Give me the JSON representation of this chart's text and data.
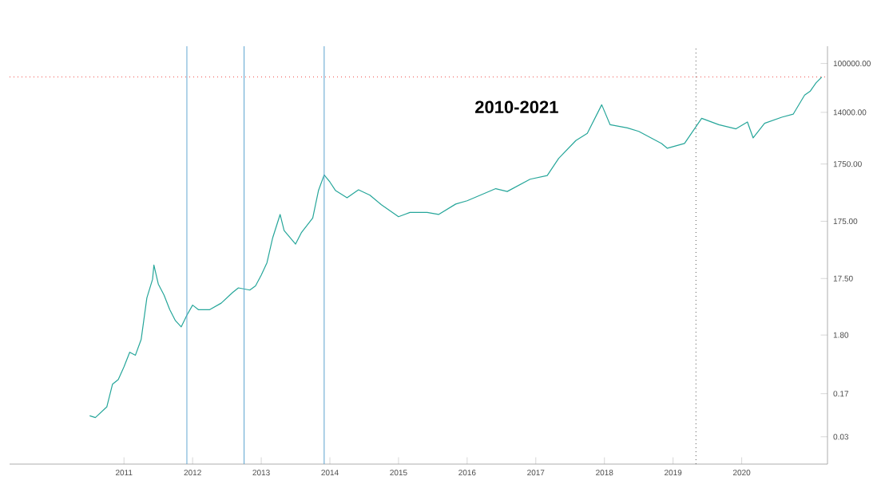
{
  "chart_data": {
    "type": "line",
    "title": "2010-2021",
    "log": "y",
    "grid": false,
    "marker": "none",
    "line_style": "solid",
    "xlim": [
      "2009-05",
      "2021-04"
    ],
    "xticks": [
      {
        "value": "2011-01-01",
        "label": "2011"
      },
      {
        "value": "2012-01-01",
        "label": "2012"
      },
      {
        "value": "2013-01-01",
        "label": "2013"
      },
      {
        "value": "2014-01-01",
        "label": "2014"
      },
      {
        "value": "2015-01-01",
        "label": "2015"
      },
      {
        "value": "2016-01-01",
        "label": "2016"
      },
      {
        "value": "2017-01-01",
        "label": "2017"
      },
      {
        "value": "2018-01-01",
        "label": "2018"
      },
      {
        "value": "2019-01-01",
        "label": "2019"
      },
      {
        "value": "2020-01-01",
        "label": "2020"
      }
    ],
    "ylim": [
      0.01,
      200000
    ],
    "yticks": [
      {
        "value": 100000,
        "label": "100000.00"
      },
      {
        "value": 14000,
        "label": "14000.00"
      },
      {
        "value": 1750,
        "label": "1750.00"
      },
      {
        "value": 175,
        "label": "175.00"
      },
      {
        "value": 17.5,
        "label": "17.50"
      },
      {
        "value": 1.8,
        "label": "1.80"
      },
      {
        "value": 0.17,
        "label": "0.17"
      },
      {
        "value": 0.03,
        "label": "0.03"
      }
    ],
    "ref_lines": [
      {
        "axis": "x",
        "value": "2011-12",
        "color": "#5ba3d0",
        "line_style": "solid"
      },
      {
        "axis": "x",
        "value": "2012-10",
        "color": "#5ba3d0",
        "line_style": "solid"
      },
      {
        "axis": "x",
        "value": "2013-12",
        "color": "#5ba3d0",
        "line_style": "solid"
      },
      {
        "axis": "x",
        "value": "2019-05",
        "color": "#555555",
        "line_style": "dotted"
      },
      {
        "axis": "y",
        "value": 58000,
        "color": "#ef5350",
        "line_style": "dotted"
      }
    ],
    "series": [
      {
        "color": "#26a69a",
        "x": [
          "2010-07",
          "2010-08",
          "2010-10",
          "2010-11",
          "2010-12",
          "2011-01",
          "2011-02",
          "2011-03",
          "2011-04",
          "2011-05",
          "2011-06-01",
          "2011-06-08",
          "2011-07",
          "2011-08",
          "2011-09",
          "2011-10",
          "2011-11",
          "2011-12",
          "2012-01",
          "2012-02",
          "2012-04",
          "2012-06",
          "2012-08",
          "2012-09",
          "2012-11",
          "2012-12",
          "2013-01",
          "2013-02",
          "2013-03",
          "2013-04-10",
          "2013-05",
          "2013-07",
          "2013-08",
          "2013-10",
          "2013-11",
          "2013-12-01",
          "2014-01",
          "2014-02",
          "2014-04",
          "2014-06",
          "2014-08",
          "2014-10",
          "2015-01",
          "2015-03",
          "2015-06",
          "2015-08",
          "2015-11",
          "2016-01",
          "2016-06",
          "2016-08",
          "2016-12",
          "2017-03",
          "2017-05",
          "2017-08",
          "2017-10",
          "2017-12-17",
          "2018-02",
          "2018-05",
          "2018-07",
          "2018-11",
          "2018-12",
          "2019-03",
          "2019-06",
          "2019-09",
          "2019-12",
          "2020-02",
          "2020-03",
          "2020-05",
          "2020-08",
          "2020-10",
          "2020-12",
          "2021-01",
          "2021-02",
          "2021-03"
        ],
        "values": [
          0.07,
          0.065,
          0.1,
          0.25,
          0.3,
          0.5,
          0.9,
          0.8,
          1.5,
          8,
          17,
          30,
          14,
          9,
          5,
          3.2,
          2.5,
          4,
          6,
          5,
          5,
          6.5,
          10,
          12,
          11,
          13,
          20,
          33,
          90,
          230,
          120,
          70,
          110,
          200,
          600,
          1130,
          850,
          600,
          450,
          620,
          500,
          340,
          210,
          250,
          250,
          230,
          350,
          400,
          650,
          580,
          950,
          1100,
          2200,
          4500,
          6000,
          19000,
          8500,
          7500,
          6500,
          4000,
          3300,
          4000,
          11000,
          8500,
          7200,
          9500,
          5000,
          9000,
          11500,
          13000,
          28000,
          33000,
          46000,
          58000
        ]
      }
    ]
  }
}
